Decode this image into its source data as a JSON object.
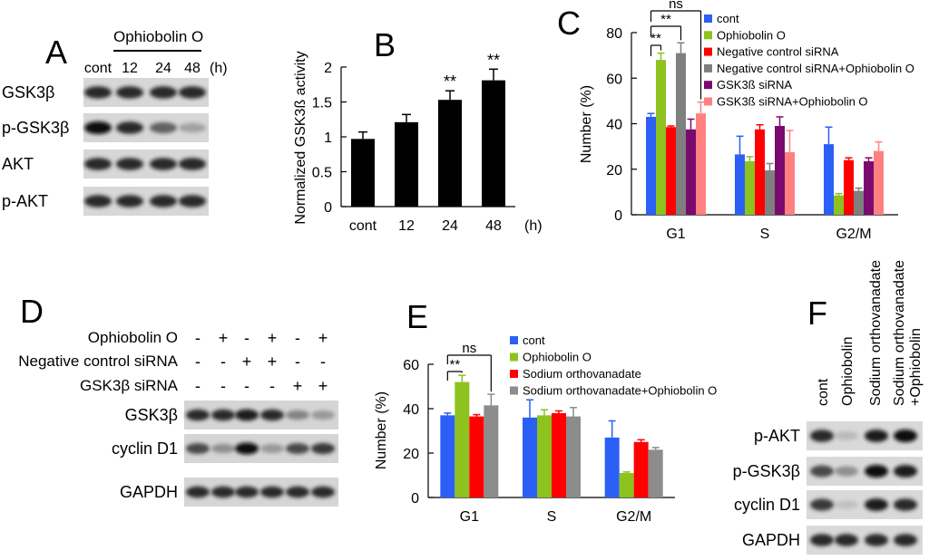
{
  "panels": {
    "A": "A",
    "B": "B",
    "C": "C",
    "D": "D",
    "E": "E",
    "F": "F"
  },
  "blots": {
    "A": {
      "treatment": "Ophiobolin O",
      "lanes": [
        "cont",
        "12",
        "24",
        "48"
      ],
      "lane_unit": "(h)",
      "rows": [
        "GSK3β",
        "p-GSK3β",
        "AKT",
        "p-AKT"
      ],
      "intensity": [
        [
          0.9,
          0.9,
          0.9,
          0.9
        ],
        [
          1.0,
          0.9,
          0.7,
          0.4
        ],
        [
          0.9,
          0.9,
          0.9,
          0.9
        ],
        [
          0.9,
          0.9,
          0.9,
          0.9
        ]
      ]
    },
    "D": {
      "conditions": [
        {
          "label": "Ophiobolin O",
          "signs": [
            "-",
            "+",
            "-",
            "+",
            "-",
            "+"
          ]
        },
        {
          "label": "Negative control siRNA",
          "signs": [
            "-",
            "-",
            "+",
            "+",
            "-",
            "-"
          ]
        },
        {
          "label": "GSK3β siRNA",
          "signs": [
            "-",
            "-",
            "-",
            "-",
            "+",
            "+"
          ]
        }
      ],
      "rows": [
        "GSK3β",
        "cyclin D1",
        "GAPDH"
      ],
      "intensity": [
        [
          0.9,
          0.9,
          0.95,
          0.9,
          0.55,
          0.45
        ],
        [
          0.8,
          0.5,
          1.0,
          0.45,
          0.8,
          0.85
        ],
        [
          0.9,
          0.9,
          0.9,
          0.9,
          0.9,
          0.9
        ]
      ]
    },
    "F": {
      "lanes": [
        "cont",
        "Ophiobolin",
        "Sodium orthovanadate",
        "Sodium orthovanadate +Ophiobolin"
      ],
      "rows": [
        "p-AKT",
        "p-GSK3β",
        "cyclin D1",
        "GAPDH"
      ],
      "intensity": [
        [
          0.9,
          0.25,
          0.95,
          1.0
        ],
        [
          0.8,
          0.5,
          1.0,
          0.95
        ],
        [
          0.85,
          0.2,
          0.95,
          0.9
        ],
        [
          0.9,
          0.9,
          0.9,
          0.9
        ]
      ]
    }
  },
  "chart_data": [
    {
      "id": "B",
      "type": "bar",
      "categories": [
        "cont",
        "12",
        "24",
        "48"
      ],
      "category_unit": "(h)",
      "values": [
        0.97,
        1.21,
        1.53,
        1.81
      ],
      "errors": [
        0.1,
        0.11,
        0.13,
        0.16
      ],
      "significance": [
        "",
        "",
        "**",
        "**"
      ],
      "ylabel": "Normalized GSK3ß activity",
      "ylim": [
        0,
        2
      ],
      "yticks": [
        "0",
        "0.5",
        "1",
        "1.5",
        "2"
      ],
      "ytick_values": [
        0,
        0.5,
        1,
        1.5,
        2
      ],
      "color": "#000000"
    },
    {
      "id": "C",
      "type": "bar",
      "categories": [
        "G1",
        "S",
        "G2/M"
      ],
      "ylabel": "Number (%)",
      "ylim": [
        0,
        80
      ],
      "yticks": [
        "0",
        "20",
        "40",
        "60",
        "80"
      ],
      "ytick_values": [
        0,
        20,
        40,
        60,
        80
      ],
      "series": [
        {
          "name": "cont",
          "color": "#2b5ff5",
          "values": [
            43,
            26.5,
            31
          ],
          "errors": [
            1.5,
            8,
            7.5
          ]
        },
        {
          "name": "Ophiobolin O",
          "color": "#8dc21f",
          "values": [
            68,
            23.5,
            8.5
          ],
          "errors": [
            3,
            2,
            0.8
          ]
        },
        {
          "name": "Negative control siRNA",
          "color": "#ff0000",
          "values": [
            38.5,
            37.5,
            24
          ],
          "errors": [
            0.5,
            2,
            1
          ]
        },
        {
          "name": "Negative control siRNA+Ophiobolin O",
          "color": "#7f7f7f",
          "values": [
            71,
            19.5,
            10.5
          ],
          "errors": [
            4.5,
            3,
            1.2
          ]
        },
        {
          "name": "GSK3ß siRNA",
          "color": "#7b0a6e",
          "values": [
            37.5,
            39,
            23.5
          ],
          "errors": [
            4.5,
            4,
            1.5
          ]
        },
        {
          "name": "GSK3ß siRNA+Ophiobolin O",
          "color": "#ff8080",
          "values": [
            44.5,
            27.5,
            28
          ],
          "errors": [
            5,
            9.5,
            4
          ]
        }
      ],
      "annotations": [
        "**",
        "**",
        "ns"
      ]
    },
    {
      "id": "E",
      "type": "bar",
      "categories": [
        "G1",
        "S",
        "G2/M"
      ],
      "ylabel": "Number (%)",
      "ylim": [
        0,
        60
      ],
      "yticks": [
        "0",
        "20",
        "40",
        "60"
      ],
      "ytick_values": [
        0,
        20,
        40,
        60
      ],
      "series": [
        {
          "name": "cont",
          "color": "#2b5ff5",
          "values": [
            37,
            36,
            27
          ],
          "errors": [
            1,
            8,
            7.5
          ]
        },
        {
          "name": "Ophiobolin O",
          "color": "#8dc21f",
          "values": [
            52,
            37,
            11
          ],
          "errors": [
            3,
            2.5,
            0.5
          ]
        },
        {
          "name": "Sodium orthovanadate",
          "color": "#ff0000",
          "values": [
            36.5,
            38,
            25
          ],
          "errors": [
            0.8,
            1,
            1
          ]
        },
        {
          "name": "Sodium orthovanadate+Ophiobolin O",
          "color": "#8c8c8c",
          "values": [
            41.5,
            36.5,
            21.5
          ],
          "errors": [
            5,
            4,
            1
          ]
        }
      ],
      "annotations": [
        "**",
        "ns"
      ]
    }
  ]
}
